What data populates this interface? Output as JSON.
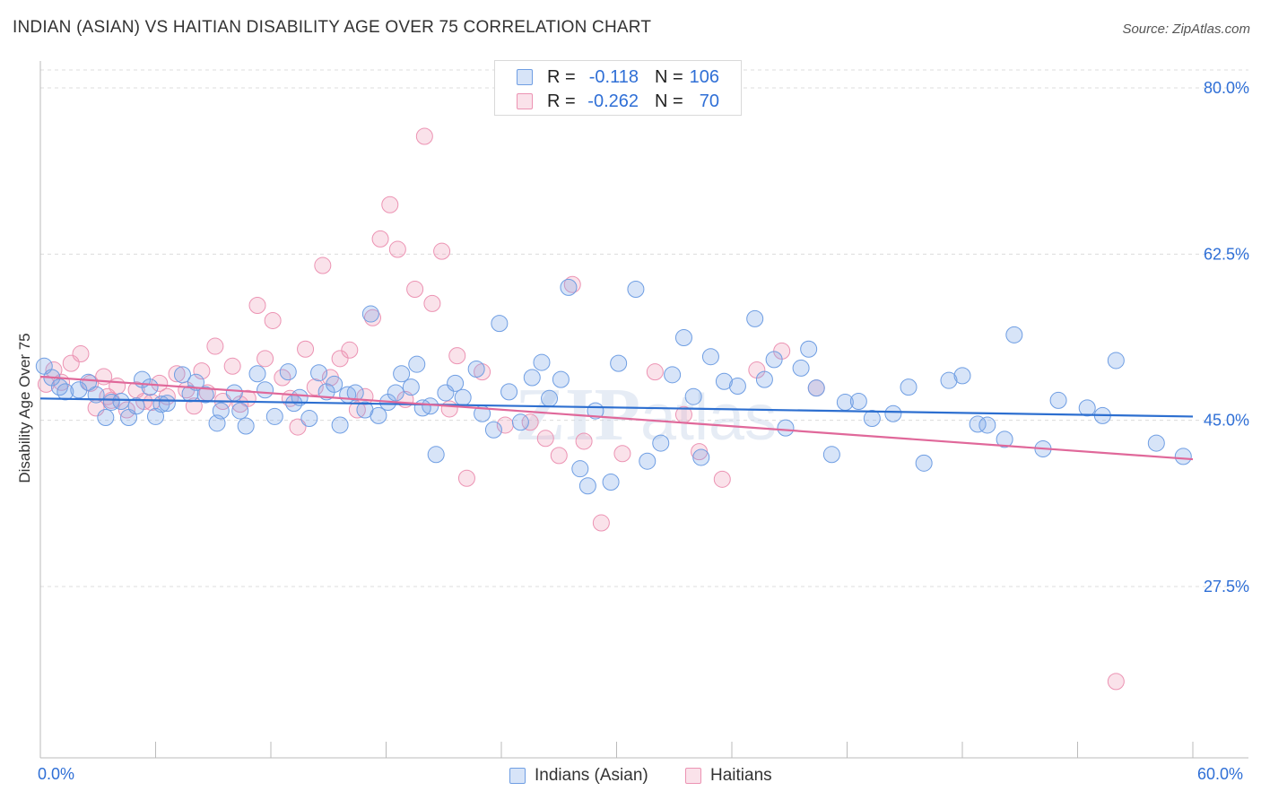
{
  "title": "INDIAN (ASIAN) VS HAITIAN DISABILITY AGE OVER 75 CORRELATION CHART",
  "source": "Source: ZipAtlas.com",
  "watermark": "ZIPatlas",
  "legend_top": {
    "rows": [
      {
        "r_label": "R =",
        "r_value": "-0.118",
        "n_label": "N =",
        "n_value": "106",
        "color": "#7ba7e8"
      },
      {
        "r_label": "R =",
        "r_value": "-0.262",
        "n_label": "N =",
        "n_value": "70",
        "color": "#f0a0bb"
      }
    ]
  },
  "legend_bottom": {
    "items": [
      {
        "label": "Indians (Asian)",
        "color": "#7ba7e8"
      },
      {
        "label": "Haitians",
        "color": "#f0a0bb"
      }
    ]
  },
  "colors": {
    "blue_fill": "rgba(123,167,232,0.30)",
    "blue_stroke": "#6f9ee3",
    "blue_line": "#2d6fd0",
    "pink_fill": "rgba(240,160,187,0.30)",
    "pink_stroke": "#ec93b3",
    "pink_line": "#e0689a",
    "axis_label": "#2f6fd6",
    "grid": "#dcdcdc"
  },
  "chart_data": {
    "type": "scatter",
    "title": "INDIAN (ASIAN) VS HAITIAN DISABILITY AGE OVER 75 CORRELATION CHART",
    "xlabel": "",
    "ylabel": "Disability Age Over 75",
    "xlim": [
      0,
      60
    ],
    "ylim": [
      10,
      84
    ],
    "x_tick_labels": [
      "0.0%",
      "60.0%"
    ],
    "y_ticks": [
      27.5,
      45.0,
      62.5,
      80.0
    ],
    "y_tick_labels": [
      "27.5%",
      "45.0%",
      "62.5%",
      "80.0%"
    ],
    "grid": "horizontal dashed",
    "legend": "top-center",
    "series": [
      {
        "name": "Indians (Asian)",
        "trend": {
          "x": [
            0,
            60
          ],
          "y": [
            47.3,
            45.4
          ]
        },
        "points": [
          [
            0.2,
            50.7
          ],
          [
            0.6,
            49.5
          ],
          [
            1.0,
            48.5
          ],
          [
            1.3,
            48.0
          ],
          [
            2.0,
            48.2
          ],
          [
            2.5,
            49.0
          ],
          [
            2.9,
            47.7
          ],
          [
            3.4,
            45.3
          ],
          [
            3.7,
            46.9
          ],
          [
            4.2,
            47.0
          ],
          [
            4.6,
            45.3
          ],
          [
            5.0,
            46.5
          ],
          [
            5.3,
            49.3
          ],
          [
            5.7,
            48.5
          ],
          [
            6.3,
            46.7
          ],
          [
            6.6,
            46.8
          ],
          [
            7.4,
            49.8
          ],
          [
            7.8,
            47.8
          ],
          [
            8.1,
            49.0
          ],
          [
            8.6,
            47.7
          ],
          [
            9.2,
            44.7
          ],
          [
            9.4,
            46.0
          ],
          [
            10.1,
            47.9
          ],
          [
            10.4,
            46.0
          ],
          [
            10.7,
            44.4
          ],
          [
            11.3,
            49.9
          ],
          [
            11.7,
            48.2
          ],
          [
            12.2,
            45.4
          ],
          [
            12.9,
            50.1
          ],
          [
            13.2,
            46.8
          ],
          [
            13.5,
            47.4
          ],
          [
            14.0,
            45.2
          ],
          [
            14.5,
            50.0
          ],
          [
            14.9,
            48.0
          ],
          [
            15.3,
            48.8
          ],
          [
            15.6,
            44.5
          ],
          [
            16.0,
            47.7
          ],
          [
            16.4,
            47.9
          ],
          [
            16.9,
            46.1
          ],
          [
            17.2,
            56.2
          ],
          [
            17.6,
            45.5
          ],
          [
            18.1,
            46.9
          ],
          [
            18.5,
            47.9
          ],
          [
            18.8,
            49.9
          ],
          [
            19.3,
            48.5
          ],
          [
            19.6,
            50.9
          ],
          [
            20.3,
            46.5
          ],
          [
            20.6,
            41.4
          ],
          [
            21.1,
            47.9
          ],
          [
            21.6,
            48.9
          ],
          [
            22.0,
            47.4
          ],
          [
            22.7,
            50.4
          ],
          [
            23.0,
            45.7
          ],
          [
            23.6,
            44.0
          ],
          [
            23.9,
            55.2
          ],
          [
            24.4,
            48.0
          ],
          [
            25.0,
            44.8
          ],
          [
            25.6,
            49.5
          ],
          [
            26.1,
            51.1
          ],
          [
            26.5,
            47.3
          ],
          [
            27.1,
            49.3
          ],
          [
            27.5,
            59.0
          ],
          [
            28.1,
            39.9
          ],
          [
            28.5,
            38.1
          ],
          [
            28.9,
            46.0
          ],
          [
            29.7,
            38.5
          ],
          [
            30.1,
            51.0
          ],
          [
            31.0,
            58.8
          ],
          [
            31.6,
            40.7
          ],
          [
            32.3,
            42.6
          ],
          [
            32.9,
            49.8
          ],
          [
            33.5,
            53.7
          ],
          [
            34.0,
            47.5
          ],
          [
            34.4,
            41.1
          ],
          [
            34.9,
            51.7
          ],
          [
            35.6,
            49.1
          ],
          [
            36.3,
            48.6
          ],
          [
            37.2,
            55.7
          ],
          [
            37.7,
            49.3
          ],
          [
            38.2,
            51.4
          ],
          [
            38.8,
            44.2
          ],
          [
            39.6,
            50.5
          ],
          [
            40.0,
            52.5
          ],
          [
            40.4,
            48.4
          ],
          [
            41.2,
            41.4
          ],
          [
            41.9,
            46.9
          ],
          [
            42.6,
            47.0
          ],
          [
            43.3,
            45.2
          ],
          [
            44.4,
            45.7
          ],
          [
            45.2,
            48.5
          ],
          [
            46.0,
            40.5
          ],
          [
            47.3,
            49.2
          ],
          [
            48.0,
            49.7
          ],
          [
            48.8,
            44.6
          ],
          [
            49.3,
            44.5
          ],
          [
            50.2,
            43.0
          ],
          [
            50.7,
            54.0
          ],
          [
            52.2,
            42.0
          ],
          [
            53.0,
            47.1
          ],
          [
            54.5,
            46.3
          ],
          [
            55.3,
            45.5
          ],
          [
            56.0,
            51.3
          ],
          [
            58.1,
            42.6
          ],
          [
            59.5,
            41.2
          ],
          [
            19.9,
            46.3
          ],
          [
            6.0,
            45.4
          ]
        ]
      },
      {
        "name": "Haitians",
        "trend": {
          "x": [
            0,
            60
          ],
          "y": [
            49.6,
            40.9
          ]
        },
        "points": [
          [
            0.3,
            48.8
          ],
          [
            0.7,
            50.3
          ],
          [
            1.1,
            49.0
          ],
          [
            1.6,
            51.0
          ],
          [
            2.1,
            52.0
          ],
          [
            2.6,
            48.9
          ],
          [
            2.9,
            46.3
          ],
          [
            3.3,
            49.6
          ],
          [
            3.7,
            47.1
          ],
          [
            4.0,
            48.6
          ],
          [
            4.5,
            46.1
          ],
          [
            5.0,
            48.2
          ],
          [
            5.4,
            47.0
          ],
          [
            5.8,
            46.9
          ],
          [
            6.2,
            48.9
          ],
          [
            6.6,
            47.5
          ],
          [
            7.1,
            49.9
          ],
          [
            7.6,
            48.2
          ],
          [
            8.0,
            46.5
          ],
          [
            8.4,
            50.2
          ],
          [
            8.7,
            47.9
          ],
          [
            9.1,
            52.8
          ],
          [
            9.5,
            47.0
          ],
          [
            10.0,
            50.7
          ],
          [
            10.4,
            46.7
          ],
          [
            10.8,
            47.3
          ],
          [
            11.3,
            57.1
          ],
          [
            11.7,
            51.5
          ],
          [
            12.1,
            55.5
          ],
          [
            12.6,
            49.5
          ],
          [
            13.0,
            47.3
          ],
          [
            13.4,
            44.3
          ],
          [
            13.8,
            52.5
          ],
          [
            14.3,
            48.5
          ],
          [
            14.7,
            61.3
          ],
          [
            15.1,
            49.5
          ],
          [
            15.6,
            51.5
          ],
          [
            16.1,
            52.4
          ],
          [
            16.5,
            46.1
          ],
          [
            16.9,
            47.5
          ],
          [
            17.3,
            55.8
          ],
          [
            17.7,
            64.1
          ],
          [
            18.2,
            67.7
          ],
          [
            18.6,
            63.0
          ],
          [
            19.0,
            47.2
          ],
          [
            19.5,
            58.8
          ],
          [
            20.0,
            74.9
          ],
          [
            20.4,
            57.3
          ],
          [
            20.9,
            62.8
          ],
          [
            21.3,
            46.2
          ],
          [
            21.7,
            51.8
          ],
          [
            22.2,
            38.9
          ],
          [
            23.0,
            50.1
          ],
          [
            24.2,
            44.5
          ],
          [
            25.5,
            44.8
          ],
          [
            26.3,
            43.1
          ],
          [
            27.0,
            41.3
          ],
          [
            27.7,
            59.3
          ],
          [
            28.3,
            42.8
          ],
          [
            29.2,
            34.2
          ],
          [
            30.3,
            41.5
          ],
          [
            32.0,
            50.1
          ],
          [
            33.5,
            45.6
          ],
          [
            34.3,
            41.7
          ],
          [
            35.5,
            38.8
          ],
          [
            37.3,
            50.3
          ],
          [
            38.6,
            52.3
          ],
          [
            40.4,
            48.4
          ],
          [
            56.0,
            17.5
          ],
          [
            3.5,
            47.5
          ]
        ]
      }
    ]
  }
}
